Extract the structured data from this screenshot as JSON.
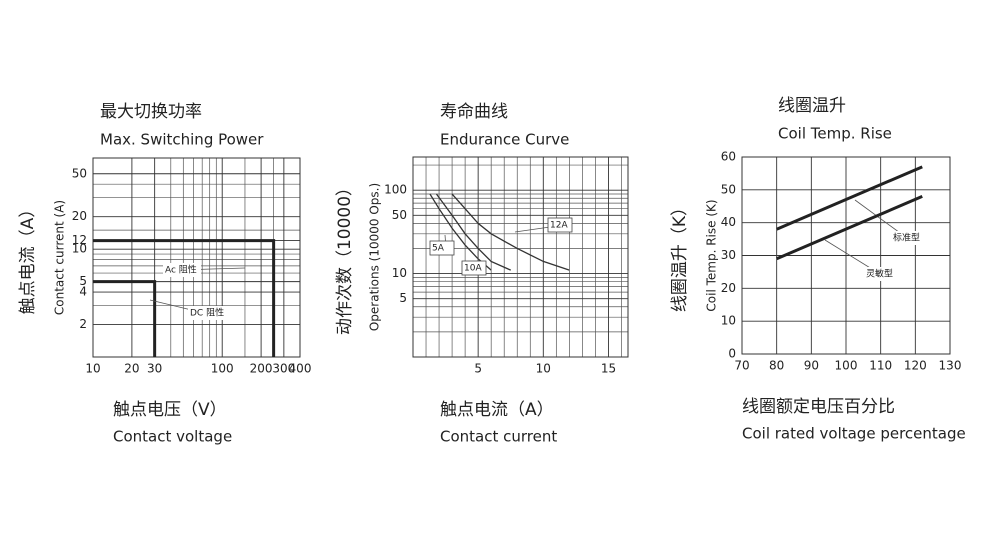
{
  "chart_data": [
    {
      "type": "line",
      "title": "最大切换功率",
      "subtitle": "Max. Switching Power",
      "xlabel": "触点电压（V）",
      "xlabel_en": "Contact voltage",
      "ylabel": "触点电流（A）",
      "ylabel_en": "Contact current (A)",
      "xscale": "log",
      "yscale": "log",
      "xlim": [
        10,
        400
      ],
      "ylim": [
        1,
        70
      ],
      "xticks": [
        10,
        20,
        30,
        100,
        200,
        300,
        400
      ],
      "yticks": [
        2,
        4,
        5,
        10,
        12,
        20,
        50
      ],
      "minor_xticks": [
        40,
        50,
        60,
        70,
        80,
        90,
        150,
        250
      ],
      "minor_yticks": [
        3,
        6,
        7,
        8,
        9,
        15,
        30,
        40
      ],
      "grid": true,
      "line_width": 3,
      "series": [
        {
          "name": "Ac 阻性",
          "color": "#222222",
          "x": [
            10,
            250,
            250
          ],
          "values": [
            12,
            12,
            1
          ]
        },
        {
          "name": "DC 阻性",
          "color": "#222222",
          "x": [
            10,
            30,
            30
          ],
          "values": [
            5,
            5,
            1
          ]
        }
      ]
    },
    {
      "type": "line",
      "title": "寿命曲线",
      "subtitle": "Endurance Curve",
      "xlabel": "触点电流（A）",
      "xlabel_en": "Contact  current",
      "ylabel": "动作次数（10000）",
      "ylabel_en": "Operations (10000 Ops.)",
      "xscale": "linear",
      "yscale": "log",
      "xlim": [
        0,
        16.5
      ],
      "ylim": [
        1,
        250
      ],
      "xticks": [
        5,
        10,
        15
      ],
      "yticks": [
        5,
        10,
        50,
        100
      ],
      "minor_xticks": [
        1,
        2,
        3,
        4,
        6,
        7,
        8,
        9,
        11,
        12,
        13,
        14,
        16
      ],
      "minor_yticks": [
        2,
        3,
        4,
        6,
        7,
        8,
        9,
        20,
        30,
        40,
        60,
        70,
        80,
        90,
        200
      ],
      "grid": true,
      "line_width": 1.3,
      "series": [
        {
          "name": "5A",
          "color": "#333333",
          "x": [
            1.3,
            2,
            3,
            4,
            5,
            6
          ],
          "values": [
            90,
            60,
            35,
            22,
            15,
            11
          ]
        },
        {
          "name": "10A",
          "color": "#333333",
          "x": [
            1.8,
            3,
            4,
            5,
            6,
            7.5
          ],
          "values": [
            90,
            50,
            30,
            20,
            14,
            11
          ]
        },
        {
          "name": "12A",
          "color": "#333333",
          "x": [
            3,
            4,
            5,
            6,
            8,
            10,
            12
          ],
          "values": [
            90,
            60,
            40,
            30,
            20,
            14,
            11
          ]
        }
      ]
    },
    {
      "type": "line",
      "title": "线圈温升",
      "subtitle": "Coil Temp. Rise",
      "xlabel": "线圈额定电压百分比",
      "xlabel_en": "Coil rated voltage percentage",
      "ylabel": "线圈温升（K）",
      "ylabel_en": "Coil Temp. Rise (K)",
      "xscale": "linear",
      "yscale": "linear",
      "xlim": [
        70,
        130
      ],
      "ylim": [
        0,
        60
      ],
      "xticks": [
        70,
        80,
        90,
        100,
        110,
        120,
        130
      ],
      "yticks": [
        0,
        10,
        20,
        30,
        40,
        50,
        60
      ],
      "grid": true,
      "line_width": 3,
      "series": [
        {
          "name": "标准型",
          "color": "#222222",
          "x": [
            80,
            122
          ],
          "values": [
            38,
            57
          ]
        },
        {
          "name": "灵敏型",
          "color": "#222222",
          "x": [
            80,
            122
          ],
          "values": [
            29,
            48
          ]
        }
      ]
    }
  ]
}
